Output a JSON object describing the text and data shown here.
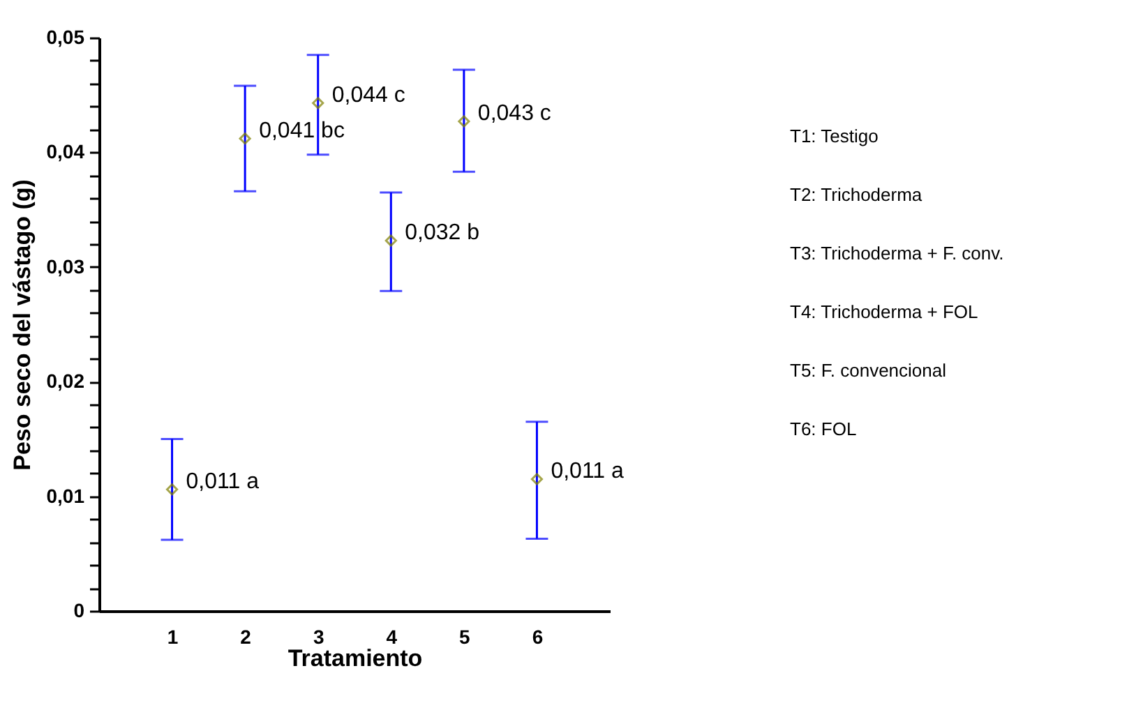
{
  "chart_data": {
    "type": "scatter",
    "xlabel": "Tratamiento",
    "ylabel": "Peso seco del vástago (g)",
    "x": [
      1,
      2,
      3,
      4,
      5,
      6
    ],
    "xlim": [
      0,
      7
    ],
    "xticks": [
      1,
      2,
      3,
      4,
      5,
      6
    ],
    "ylim": [
      0,
      0.05
    ],
    "yticks": [
      0,
      {
        "value": 0.002,
        "label": null
      },
      {
        "value": 0.004,
        "label": null
      },
      {
        "value": 0.006,
        "label": null
      },
      {
        "value": 0.008,
        "label": null
      },
      {
        "value": 0.01,
        "label": "0,01"
      },
      {
        "value": 0.012,
        "label": null
      },
      {
        "value": 0.014,
        "label": null
      },
      {
        "value": 0.016,
        "label": null
      },
      {
        "value": 0.018,
        "label": null
      },
      {
        "value": 0.02,
        "label": "0,02"
      },
      {
        "value": 0.022,
        "label": null
      },
      {
        "value": 0.024,
        "label": null
      },
      {
        "value": 0.026,
        "label": null
      },
      {
        "value": 0.028,
        "label": null
      },
      {
        "value": 0.03,
        "label": "0,03"
      },
      {
        "value": 0.032,
        "label": null
      },
      {
        "value": 0.034,
        "label": null
      },
      {
        "value": 0.036,
        "label": null
      },
      {
        "value": 0.038,
        "label": null
      },
      {
        "value": 0.04,
        "label": "0,04"
      },
      {
        "value": 0.042,
        "label": null
      },
      {
        "value": 0.044,
        "label": null
      },
      {
        "value": 0.046,
        "label": null
      },
      {
        "value": 0.048,
        "label": null
      },
      {
        "value": 0.05,
        "label": "0,05"
      }
    ],
    "series": [
      {
        "color": "#808000",
        "values": [
          0.0106,
          0.0412,
          0.0443,
          0.0323,
          0.0427,
          0.0115
        ],
        "errors": [
          [
            0.0062,
            0.015
          ],
          [
            0.0366,
            0.0458
          ],
          [
            0.0398,
            0.0485
          ],
          [
            0.0279,
            0.0365
          ],
          [
            0.0383,
            0.0472
          ],
          [
            0.0063,
            0.0165
          ]
        ],
        "value_labels": [
          "0,011 a",
          "0,041 bc",
          "0,044 c",
          "0,032 b",
          "0,043 c",
          "0,011 a"
        ]
      }
    ],
    "marker": "diamond",
    "grid": false,
    "annotations": [
      "T1: Testigo",
      "T2: Trichoderma",
      "T3: Trichoderma + F. conv.",
      "T4: Trichoderma + FOL",
      "T5: F. convencional",
      "T6: FOL"
    ]
  }
}
